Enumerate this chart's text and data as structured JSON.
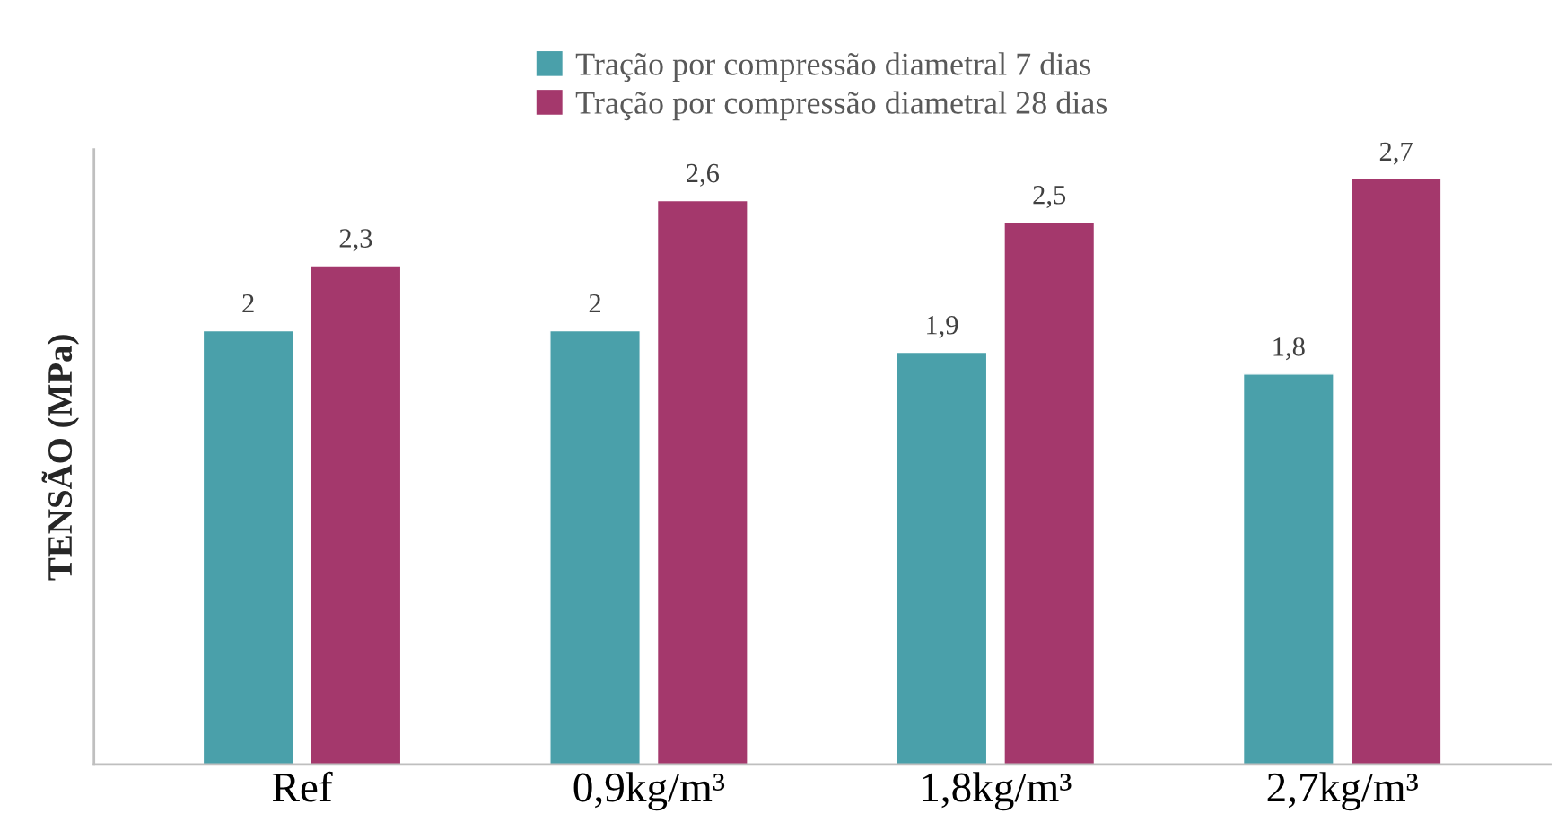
{
  "chart_data": {
    "type": "bar",
    "ylabel": "TENSÃO (MPa)",
    "categories": [
      "Ref",
      "0,9kg/m³",
      "1,8kg/m³",
      "2,7kg/m³"
    ],
    "series": [
      {
        "name": "Tração por compressão diametral 7 dias",
        "color": "#4aa0aa",
        "values": [
          2,
          2,
          1.9,
          1.8
        ],
        "value_labels": [
          "2",
          "2",
          "1,9",
          "1,8"
        ]
      },
      {
        "name": "Tração por compressão diametral 28 dias",
        "color": "#a4386c",
        "values": [
          2.3,
          2.6,
          2.5,
          2.7
        ],
        "value_labels": [
          "2,3",
          "2,6",
          "2,5",
          "2,7"
        ]
      }
    ],
    "legend": "top",
    "grid": false,
    "tick_labels": "x"
  }
}
